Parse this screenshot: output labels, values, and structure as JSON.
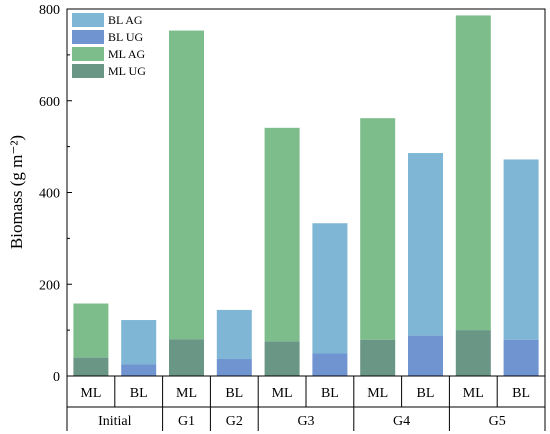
{
  "chart_data": {
    "type": "bar",
    "stacked": true,
    "ylabel": "Biomass (g m⁻²)",
    "ylim": [
      0,
      800
    ],
    "yticks": [
      0,
      200,
      400,
      600,
      800
    ],
    "grid": false,
    "legend_position": "top-left",
    "legend": [
      {
        "name": "BL AG",
        "color": "#7fb6d6"
      },
      {
        "name": "BL UG",
        "color": "#6f94d0"
      },
      {
        "name": "ML AG",
        "color": "#7dbd8b"
      },
      {
        "name": "ML UG",
        "color": "#6a9686"
      }
    ],
    "bars": [
      {
        "group": "Initial",
        "label": "ML",
        "type": "ML",
        "ug": 40,
        "total": 158
      },
      {
        "group": "Initial",
        "label": "BL",
        "type": "BL",
        "ug": 25,
        "total": 122
      },
      {
        "group": "G1",
        "label": "ML",
        "type": "ML",
        "ug": 80,
        "total": 753
      },
      {
        "group": "G2",
        "label": "BL",
        "type": "BL",
        "ug": 37,
        "total": 144
      },
      {
        "group": "G3",
        "label": "ML",
        "type": "ML",
        "ug": 75,
        "total": 541
      },
      {
        "group": "G3",
        "label": "BL",
        "type": "BL",
        "ug": 49,
        "total": 333
      },
      {
        "group": "G4",
        "label": "ML",
        "type": "ML",
        "ug": 79,
        "total": 562
      },
      {
        "group": "G4",
        "label": "BL",
        "type": "BL",
        "ug": 88,
        "total": 486
      },
      {
        "group": "G5",
        "label": "ML",
        "type": "ML",
        "ug": 100,
        "total": 786
      },
      {
        "group": "G5",
        "label": "BL",
        "type": "BL",
        "ug": 79,
        "total": 472
      }
    ],
    "groups": [
      {
        "name": "Initial",
        "span": 2
      },
      {
        "name": "G1",
        "span": 1
      },
      {
        "name": "G2",
        "span": 1
      },
      {
        "name": "G3",
        "span": 2
      },
      {
        "name": "G4",
        "span": 2
      },
      {
        "name": "G5",
        "span": 2
      }
    ]
  }
}
